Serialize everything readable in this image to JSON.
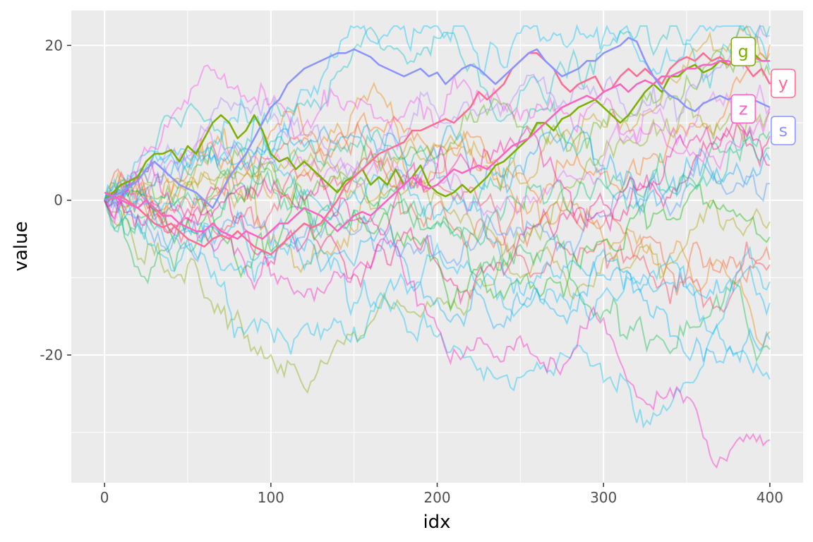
{
  "chart_data": {
    "type": "line",
    "xlabel": "idx",
    "ylabel": "value",
    "xlim": [
      -20,
      420
    ],
    "ylim": [
      -36.5,
      24.5
    ],
    "x_ticks": [
      0,
      100,
      200,
      300,
      400
    ],
    "x_tick_labels": [
      "0",
      "100",
      "200",
      "300",
      "400"
    ],
    "y_ticks": [
      -20,
      0,
      20
    ],
    "y_tick_labels": [
      "-20",
      "0",
      "20"
    ],
    "grid": true,
    "legend": "none",
    "panel_background": "#ebebeb",
    "grid_color": "#ffffff",
    "highlighted_series": [
      {
        "name": "g",
        "color": "#7cae00",
        "x": [
          0,
          10,
          20,
          25,
          30,
          35,
          40,
          45,
          50,
          55,
          60,
          65,
          70,
          75,
          80,
          85,
          90,
          95,
          100,
          105,
          110,
          115,
          120,
          125,
          130,
          135,
          140,
          145,
          150,
          155,
          160,
          165,
          170,
          175,
          180,
          185,
          190,
          195,
          200,
          205,
          210,
          215,
          220,
          225,
          230,
          235,
          240,
          245,
          250,
          255,
          260,
          265,
          270,
          275,
          280,
          285,
          290,
          295,
          300,
          305,
          310,
          315,
          320,
          325,
          330,
          335,
          340,
          345,
          350,
          355,
          360,
          365,
          370,
          375,
          380,
          385,
          390,
          395,
          400
        ],
        "values": [
          0,
          2,
          3,
          5,
          6,
          6,
          6.5,
          5,
          7,
          6,
          8,
          10,
          11,
          10,
          8,
          9,
          11,
          9,
          6,
          5,
          5.5,
          4,
          5,
          4,
          3,
          2,
          1,
          2.5,
          3,
          4,
          2,
          3,
          2,
          4,
          2,
          3,
          4.5,
          2,
          1,
          0.5,
          1,
          2,
          1,
          2,
          3,
          4.5,
          5,
          6,
          7,
          8,
          10,
          10,
          9,
          10.5,
          11,
          12,
          12.5,
          13,
          12,
          11,
          10,
          11,
          12.5,
          14,
          15,
          14,
          16,
          16,
          17,
          17.5,
          16.5,
          17,
          18,
          17.5,
          18,
          19,
          19,
          18,
          18
        ]
      },
      {
        "name": "y",
        "color": "#ff6c91",
        "x": [
          0,
          10,
          20,
          25,
          30,
          35,
          40,
          45,
          50,
          55,
          60,
          65,
          70,
          75,
          80,
          85,
          90,
          95,
          100,
          105,
          110,
          115,
          120,
          125,
          130,
          135,
          140,
          145,
          150,
          155,
          160,
          165,
          170,
          175,
          180,
          185,
          190,
          195,
          200,
          205,
          210,
          215,
          220,
          225,
          230,
          235,
          240,
          245,
          250,
          255,
          260,
          265,
          270,
          275,
          280,
          285,
          290,
          295,
          300,
          305,
          310,
          315,
          320,
          325,
          330,
          335,
          340,
          345,
          350,
          355,
          360,
          365,
          370,
          375,
          380,
          385,
          390,
          395,
          400
        ],
        "values": [
          0,
          0.5,
          -1,
          -2,
          -3,
          -3.5,
          -3,
          -4,
          -5,
          -5.5,
          -6,
          -5,
          -4.5,
          -5,
          -4,
          -5,
          -6,
          -6.5,
          -7,
          -6,
          -5,
          -4,
          -3,
          -3.5,
          -3,
          -1.5,
          0,
          2,
          3,
          4,
          5,
          6,
          6.5,
          7,
          7.5,
          9,
          9,
          9.5,
          10,
          10.5,
          10,
          11,
          12,
          14,
          13,
          14,
          15,
          17,
          18,
          19,
          19,
          18,
          17,
          15,
          14,
          15,
          15.5,
          16,
          14,
          14.5,
          16,
          17,
          16,
          17,
          16,
          15,
          17,
          18,
          18.5,
          18,
          19,
          18,
          18.5,
          17.5,
          18,
          17.5,
          16,
          17,
          15
        ]
      },
      {
        "name": "z",
        "color": "#ff61c3",
        "x": [
          0,
          10,
          20,
          25,
          30,
          35,
          40,
          45,
          50,
          55,
          60,
          65,
          70,
          75,
          80,
          85,
          90,
          95,
          100,
          105,
          110,
          115,
          120,
          125,
          130,
          135,
          140,
          145,
          150,
          155,
          160,
          165,
          170,
          175,
          180,
          185,
          190,
          195,
          200,
          205,
          210,
          215,
          220,
          225,
          230,
          235,
          240,
          245,
          250,
          255,
          260,
          265,
          270,
          275,
          280,
          285,
          290,
          295,
          300,
          305,
          310,
          315,
          320,
          325,
          330,
          335,
          340,
          345,
          350,
          355,
          360,
          365,
          370,
          375,
          380,
          385,
          390,
          395,
          400
        ],
        "values": [
          1,
          0,
          -1,
          0,
          -1,
          -2,
          -2,
          -3,
          -3.5,
          -4,
          -4,
          -3,
          -4,
          -4.5,
          -5,
          -4,
          -4.5,
          -5,
          -4,
          -3,
          -3,
          -2,
          -1,
          -1.5,
          -2,
          -3,
          -4,
          -3,
          -2,
          -1.5,
          -2,
          -1,
          0,
          1,
          2,
          3,
          2,
          1.5,
          2,
          3,
          4,
          3.5,
          4,
          4.5,
          4,
          5,
          6,
          7,
          7.5,
          8,
          9,
          10,
          11,
          12,
          12.5,
          13,
          13.5,
          13,
          14,
          14.5,
          15,
          14,
          15,
          15.5,
          15,
          16,
          16,
          16.5,
          17,
          17,
          17.5,
          17.5,
          18,
          18,
          17.5,
          18,
          18.5,
          18,
          18
        ]
      },
      {
        "name": "s",
        "color": "#8b93ff",
        "x": [
          0,
          10,
          20,
          25,
          30,
          35,
          40,
          45,
          50,
          55,
          60,
          65,
          70,
          75,
          80,
          85,
          90,
          95,
          100,
          105,
          110,
          115,
          120,
          125,
          130,
          135,
          140,
          145,
          150,
          155,
          160,
          165,
          170,
          175,
          180,
          185,
          190,
          195,
          200,
          205,
          210,
          215,
          220,
          225,
          230,
          235,
          240,
          245,
          250,
          255,
          260,
          265,
          270,
          275,
          280,
          285,
          290,
          295,
          300,
          305,
          310,
          315,
          320,
          325,
          330,
          335,
          340,
          345,
          350,
          355,
          360,
          365,
          370,
          375,
          380,
          385,
          390,
          395,
          400
        ],
        "values": [
          0,
          1,
          2.5,
          4,
          5,
          4,
          3,
          2,
          1.5,
          1,
          0,
          -1,
          1,
          3,
          4.5,
          6,
          8,
          10,
          12,
          13,
          15,
          16,
          17,
          17.5,
          18,
          18.5,
          19,
          19,
          19.5,
          19,
          18.5,
          17.5,
          17,
          16.5,
          16,
          16.5,
          17,
          16,
          16.5,
          15,
          16,
          17,
          17.5,
          17,
          16,
          15,
          16,
          17,
          18,
          19,
          19.5,
          18,
          17,
          16,
          16.5,
          17,
          18,
          18,
          19,
          19.5,
          20,
          21,
          20.5,
          18,
          16,
          14.5,
          13.5,
          13,
          12,
          11.5,
          12.5,
          13,
          13.5,
          13,
          13.5,
          12.5,
          13,
          12.5,
          12
        ]
      }
    ],
    "background_series_count": 26,
    "series_labels": [
      {
        "name": "g",
        "x": 384,
        "y": 19.2,
        "color": "#7cae00"
      },
      {
        "name": "y",
        "x": 408,
        "y": 15.1,
        "color": "#ff6c91"
      },
      {
        "name": "z",
        "x": 384,
        "y": 11.8,
        "color": "#ff61c3"
      },
      {
        "name": "s",
        "x": 408,
        "y": 9.0,
        "color": "#8b93ff"
      }
    ]
  }
}
